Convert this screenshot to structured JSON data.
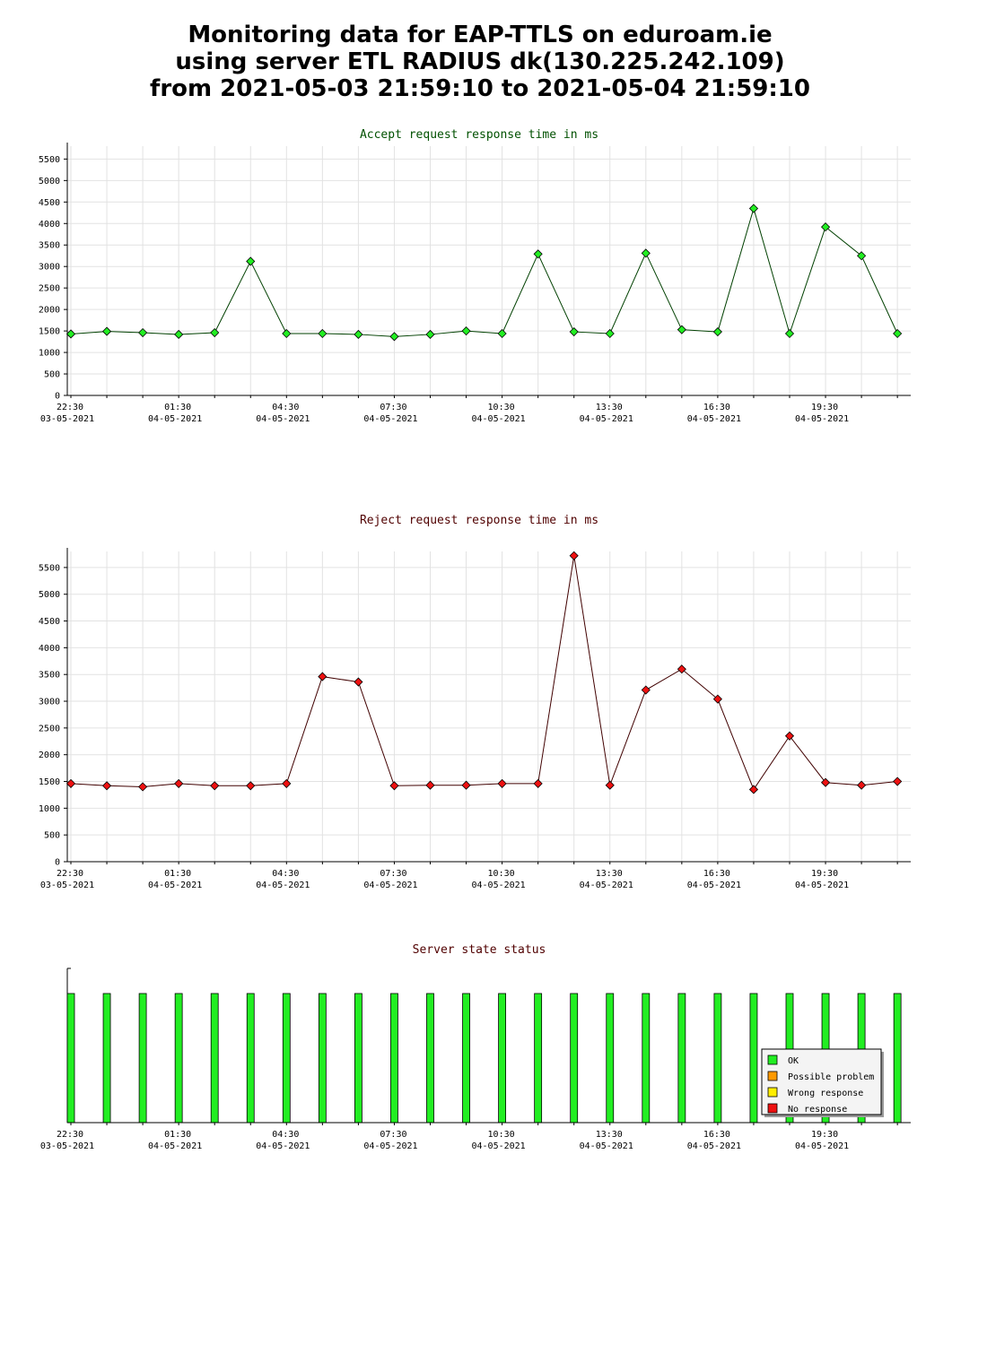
{
  "title": {
    "line1": "Monitoring data for EAP-TTLS on eduroam.ie",
    "line2": "using server ETL RADIUS dk(130.225.242.109)",
    "line3": "from 2021-05-03 21:59:10 to 2021-05-04 21:59:10"
  },
  "chart_data": [
    {
      "type": "line",
      "title": "Accept request response time in ms",
      "title_color": "#005000",
      "line_color": "#004000",
      "marker_color": "#22ee22",
      "x": [
        "22:30 03-05-2021",
        "23:30",
        "00:30",
        "01:30 04-05-2021",
        "02:30",
        "03:30",
        "04:30 04-05-2021",
        "05:30",
        "06:30",
        "07:30 04-05-2021",
        "08:30",
        "09:30",
        "10:30 04-05-2021",
        "11:30",
        "12:30",
        "13:30 04-05-2021",
        "14:30",
        "15:30",
        "16:30 04-05-2021",
        "17:30",
        "18:30",
        "19:30 04-05-2021",
        "20:30",
        "21:30"
      ],
      "values": [
        1430,
        1490,
        1460,
        1420,
        1460,
        3120,
        1440,
        1440,
        1420,
        1370,
        1420,
        1500,
        1440,
        3290,
        1480,
        1440,
        3310,
        1530,
        1480,
        4350,
        1440,
        3920,
        3250,
        1440
      ],
      "ylim": [
        0,
        5800
      ],
      "yticks": [
        "0",
        "500",
        "1000",
        "1500",
        "2000",
        "2500",
        "3000",
        "3500",
        "4000",
        "4500",
        "5000",
        "5500"
      ],
      "xtick_labels": [
        {
          "time": "22:30",
          "date": "03-05-2021"
        },
        {
          "time": "01:30",
          "date": "04-05-2021"
        },
        {
          "time": "04:30",
          "date": "04-05-2021"
        },
        {
          "time": "07:30",
          "date": "04-05-2021"
        },
        {
          "time": "10:30",
          "date": "04-05-2021"
        },
        {
          "time": "13:30",
          "date": "04-05-2021"
        },
        {
          "time": "16:30",
          "date": "04-05-2021"
        },
        {
          "time": "19:30",
          "date": "04-05-2021"
        }
      ],
      "grid": true
    },
    {
      "type": "line",
      "title": "Reject request response time in ms",
      "title_color": "#500000",
      "line_color": "#400000",
      "marker_color": "#ee1111",
      "x": [
        "22:30 03-05-2021",
        "23:30",
        "00:30",
        "01:30 04-05-2021",
        "02:30",
        "03:30",
        "04:30 04-05-2021",
        "05:30",
        "06:30",
        "07:30 04-05-2021",
        "08:30",
        "09:30",
        "10:30 04-05-2021",
        "11:30",
        "12:30",
        "13:30 04-05-2021",
        "14:30",
        "15:30",
        "16:30 04-05-2021",
        "17:30",
        "18:30",
        "19:30 04-05-2021",
        "20:30",
        "21:30"
      ],
      "values": [
        1460,
        1420,
        1400,
        1460,
        1420,
        1420,
        1460,
        3460,
        3360,
        1420,
        1430,
        1430,
        1460,
        1460,
        5720,
        1430,
        3210,
        3600,
        3040,
        1350,
        2350,
        1480,
        1430,
        1500
      ],
      "ylim": [
        0,
        5800
      ],
      "yticks": [
        "0",
        "500",
        "1000",
        "1500",
        "2000",
        "2500",
        "3000",
        "3500",
        "4000",
        "4500",
        "5000",
        "5500"
      ],
      "xtick_labels": [
        {
          "time": "22:30",
          "date": "03-05-2021"
        },
        {
          "time": "01:30",
          "date": "04-05-2021"
        },
        {
          "time": "04:30",
          "date": "04-05-2021"
        },
        {
          "time": "07:30",
          "date": "04-05-2021"
        },
        {
          "time": "10:30",
          "date": "04-05-2021"
        },
        {
          "time": "13:30",
          "date": "04-05-2021"
        },
        {
          "time": "16:30",
          "date": "04-05-2021"
        },
        {
          "time": "19:30",
          "date": "04-05-2021"
        }
      ],
      "grid": true
    },
    {
      "type": "bar",
      "title": "Server state status",
      "title_color": "#500000",
      "x": [
        "22:30 03-05-2021",
        "23:30",
        "00:30",
        "01:30 04-05-2021",
        "02:30",
        "03:30",
        "04:30 04-05-2021",
        "05:30",
        "06:30",
        "07:30 04-05-2021",
        "08:30",
        "09:30",
        "10:30 04-05-2021",
        "11:30",
        "12:30",
        "13:30 04-05-2021",
        "14:30",
        "15:30",
        "16:30 04-05-2021",
        "17:30",
        "18:30",
        "19:30 04-05-2021",
        "20:30",
        "21:30"
      ],
      "states": [
        "OK",
        "OK",
        "OK",
        "OK",
        "OK",
        "OK",
        "OK",
        "OK",
        "OK",
        "OK",
        "OK",
        "OK",
        "OK",
        "OK",
        "OK",
        "OK",
        "OK",
        "OK",
        "OK",
        "OK",
        "OK",
        "OK",
        "OK",
        "OK"
      ],
      "legend": [
        {
          "label": "OK",
          "color": "#22ee22"
        },
        {
          "label": "Possible problem",
          "color": "#ff9900"
        },
        {
          "label": "Wrong response",
          "color": "#ffee00"
        },
        {
          "label": "No response",
          "color": "#ee1111"
        }
      ],
      "legend_position": "bottom-right",
      "xtick_labels": [
        {
          "time": "22:30",
          "date": "03-05-2021"
        },
        {
          "time": "01:30",
          "date": "04-05-2021"
        },
        {
          "time": "04:30",
          "date": "04-05-2021"
        },
        {
          "time": "07:30",
          "date": "04-05-2021"
        },
        {
          "time": "10:30",
          "date": "04-05-2021"
        },
        {
          "time": "13:30",
          "date": "04-05-2021"
        },
        {
          "time": "16:30",
          "date": "04-05-2021"
        },
        {
          "time": "19:30",
          "date": "04-05-2021"
        }
      ]
    }
  ]
}
